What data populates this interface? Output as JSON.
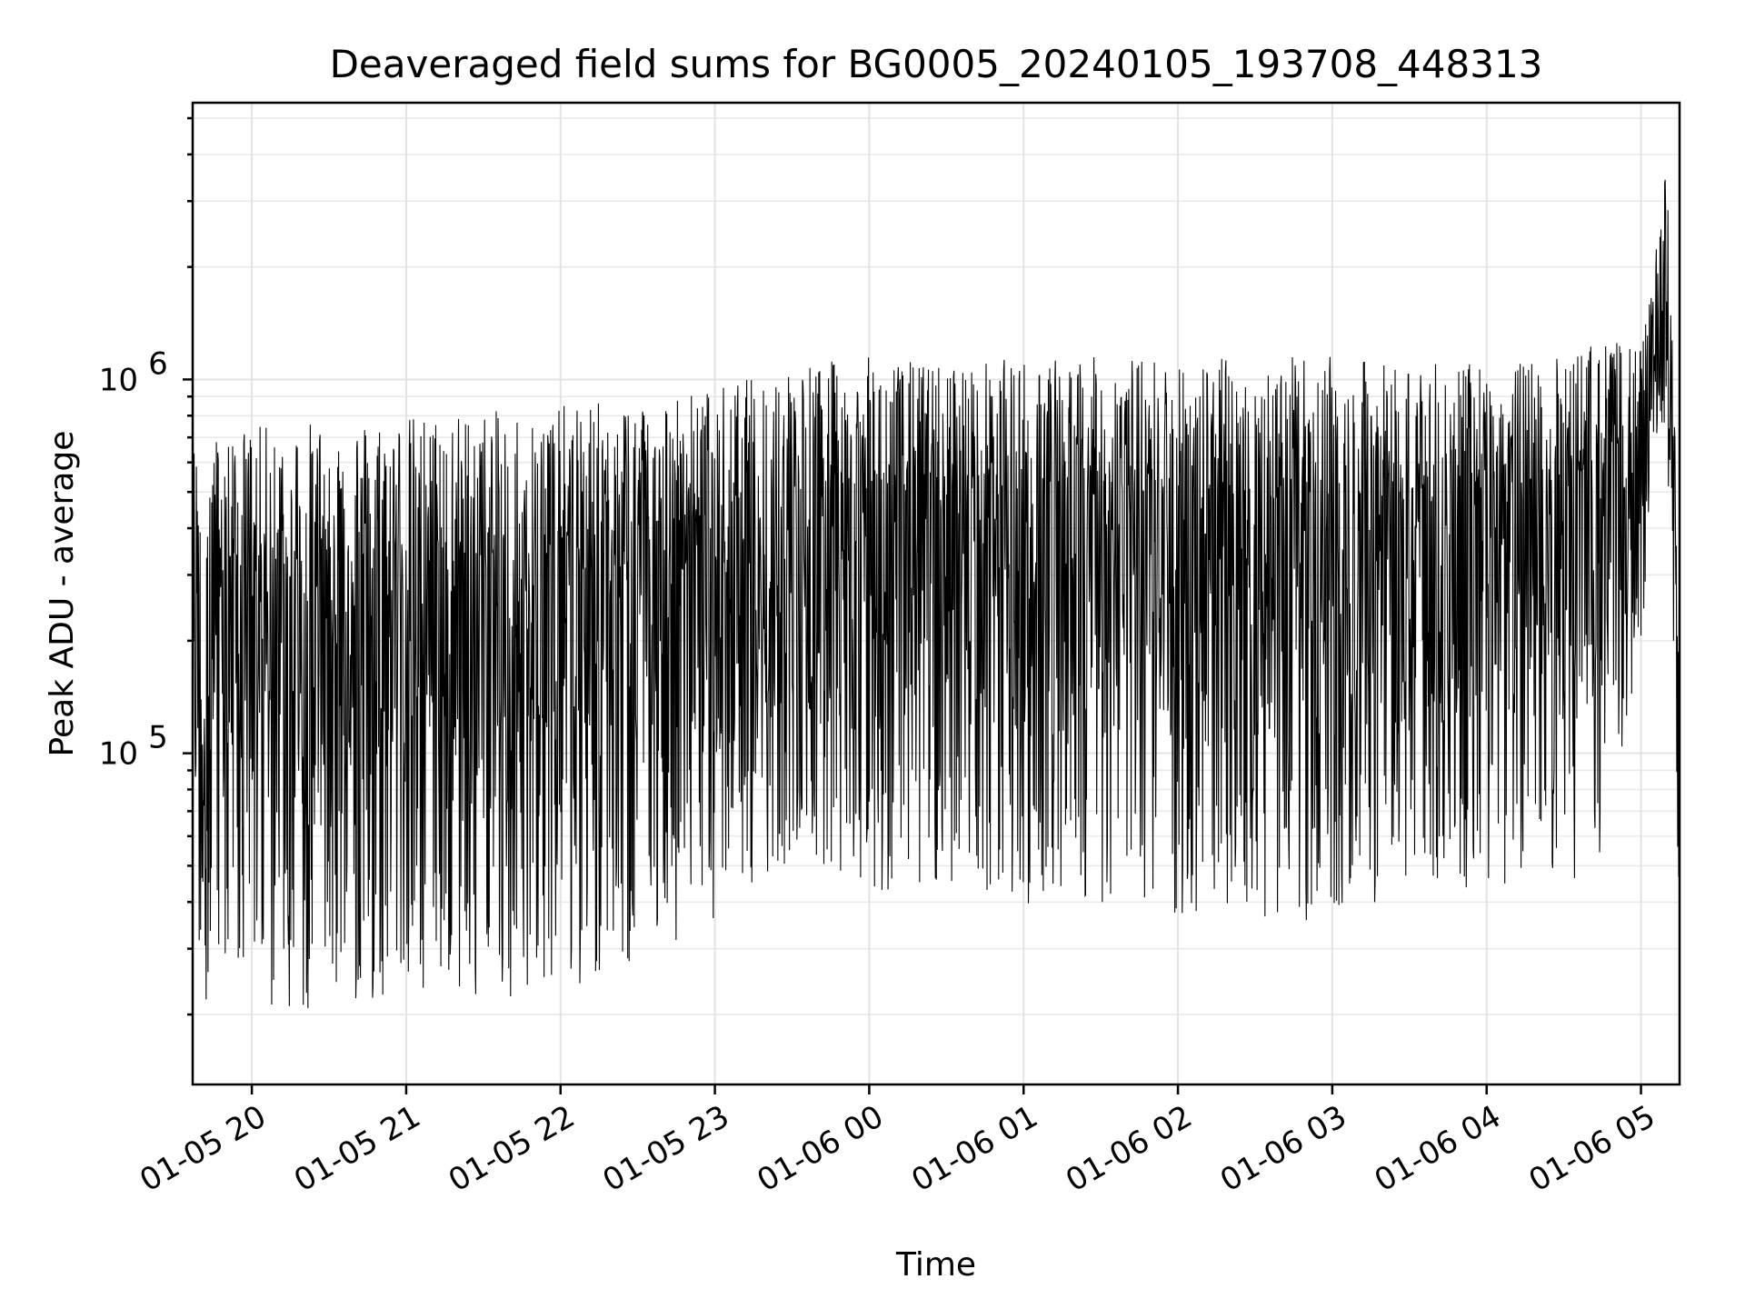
{
  "chart_data": {
    "type": "line",
    "title": "Deaveraged field sums for BG0005_20240105_193708_448313",
    "xlabel": "Time",
    "ylabel": "Peak ADU - average",
    "yscale": "log",
    "grid": true,
    "grid_color": "#e3e3e3",
    "line_color": "#000000",
    "xlim": [
      "2024-01-05 19:37",
      "2024-01-06 05:15"
    ],
    "ylim": [
      13000,
      5500000
    ],
    "xticks": [
      {
        "value": "2024-01-05 20:00",
        "label": "01-05 20"
      },
      {
        "value": "2024-01-05 21:00",
        "label": "01-05 21"
      },
      {
        "value": "2024-01-05 22:00",
        "label": "01-05 22"
      },
      {
        "value": "2024-01-05 23:00",
        "label": "01-05 23"
      },
      {
        "value": "2024-01-06 00:00",
        "label": "01-06 00"
      },
      {
        "value": "2024-01-06 01:00",
        "label": "01-06 01"
      },
      {
        "value": "2024-01-06 02:00",
        "label": "01-06 02"
      },
      {
        "value": "2024-01-06 03:00",
        "label": "01-06 03"
      },
      {
        "value": "2024-01-06 04:00",
        "label": "01-06 04"
      },
      {
        "value": "2024-01-06 05:00",
        "label": "01-06 05"
      }
    ],
    "yticks": [
      {
        "value": 100000,
        "base": "10",
        "exp": "5"
      },
      {
        "value": 1000000,
        "base": "10",
        "exp": "6"
      }
    ],
    "series": [
      {
        "envelope_note_free": true,
        "x": [
          "2024-01-05 19:37",
          "2024-01-05 20:00",
          "2024-01-05 20:30",
          "2024-01-05 21:00",
          "2024-01-05 21:30",
          "2024-01-05 22:00",
          "2024-01-05 22:30",
          "2024-01-05 23:00",
          "2024-01-05 23:30",
          "2024-01-06 00:00",
          "2024-01-06 00:30",
          "2024-01-06 01:00",
          "2024-01-06 01:30",
          "2024-01-06 02:00",
          "2024-01-06 02:30",
          "2024-01-06 03:00",
          "2024-01-06 03:30",
          "2024-01-06 04:00",
          "2024-01-06 04:30",
          "2024-01-06 04:45",
          "2024-01-06 05:00",
          "2024-01-06 05:05",
          "2024-01-06 05:10",
          "2024-01-06 05:15"
        ],
        "upper": [
          700000,
          750000,
          780000,
          800000,
          820000,
          850000,
          900000,
          950000,
          1100000,
          1150000,
          1100000,
          1150000,
          1150000,
          1150000,
          1150000,
          1150000,
          1100000,
          1100000,
          1150000,
          1300000,
          1200000,
          2000000,
          3800000,
          300000
        ],
        "lower": [
          22000,
          20000,
          21000,
          22000,
          22000,
          23000,
          28000,
          35000,
          48000,
          42000,
          45000,
          38000,
          38000,
          36000,
          35000,
          36000,
          40000,
          45000,
          42000,
          55000,
          180000,
          700000,
          700000,
          30000
        ]
      }
    ]
  }
}
